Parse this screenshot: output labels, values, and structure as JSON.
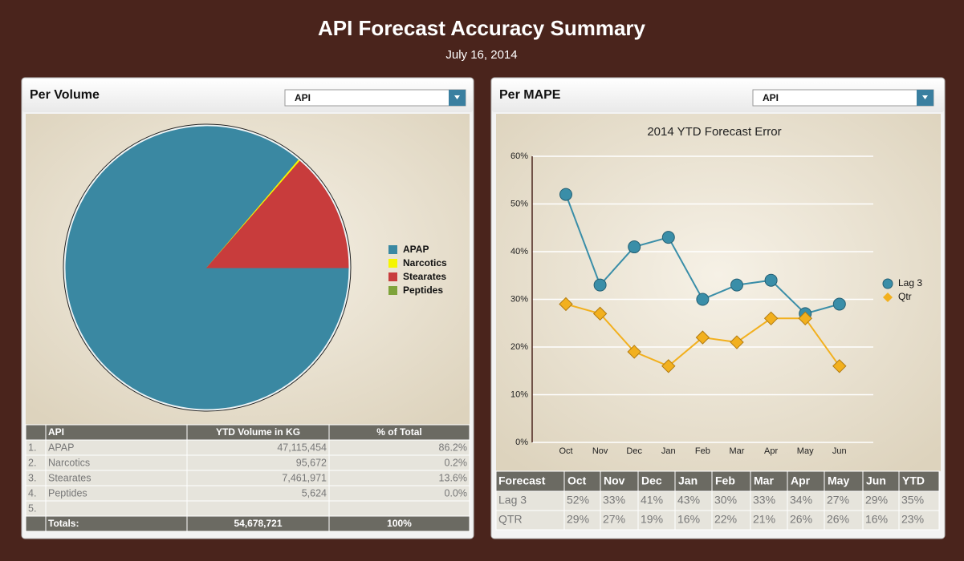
{
  "header": {
    "title": "API Forecast Accuracy Summary",
    "date": "July 16, 2014"
  },
  "panels": [
    {
      "title": "Per Volume",
      "dropdown": "API"
    },
    {
      "title": "Per MAPE",
      "dropdown": "API"
    }
  ],
  "chart_data": [
    {
      "type": "pie",
      "categories": [
        "APAP",
        "Narcotics",
        "Stearates",
        "Peptides"
      ],
      "values": [
        86.2,
        0.2,
        13.6,
        0.0
      ],
      "colors": [
        "#3a88a2",
        "#f5f500",
        "#c83c3c",
        "#7ea33a"
      ],
      "legend": "right"
    },
    {
      "type": "line",
      "title": "2014 YTD Forecast Error",
      "categories": [
        "Oct",
        "Nov",
        "Dec",
        "Jan",
        "Feb",
        "Mar",
        "Apr",
        "May",
        "Jun"
      ],
      "series": [
        {
          "name": "Lag 3",
          "color": "#3a8ea8",
          "marker": "circle",
          "values": [
            52,
            33,
            41,
            43,
            30,
            33,
            34,
            27,
            29
          ]
        },
        {
          "name": "Qtr",
          "color": "#f2b01e",
          "marker": "diamond",
          "values": [
            29,
            27,
            19,
            16,
            22,
            21,
            26,
            26,
            16
          ]
        }
      ],
      "ylim": [
        0,
        60
      ],
      "yticks": [
        {
          "value": 0,
          "label": "0%"
        },
        {
          "value": 10,
          "label": "10%"
        },
        {
          "value": 20,
          "label": "20%"
        },
        {
          "value": 30,
          "label": "30%"
        },
        {
          "value": 40,
          "label": "40%"
        },
        {
          "value": 50,
          "label": "50%"
        },
        {
          "value": 60,
          "label": "60%"
        }
      ],
      "grid": true,
      "legend": "right"
    }
  ],
  "volume_table": {
    "header": [
      "API",
      "YTD Volume in KG",
      "% of Total"
    ],
    "rows": [
      [
        "1.",
        "APAP",
        "47,115,454",
        "86.2%"
      ],
      [
        "2.",
        "Narcotics",
        "95,672",
        "0.2%"
      ],
      [
        "3.",
        "Stearates",
        "7,461,971",
        "13.6%"
      ],
      [
        "4.",
        "Peptides",
        "5,624",
        "0.0%"
      ],
      [
        "5."
      ]
    ],
    "totals": [
      "Totals:",
      "54,678,721",
      "100%"
    ]
  },
  "mape_table": {
    "header": [
      "Forecast",
      "Oct",
      "Nov",
      "Dec",
      "Jan",
      "Feb",
      "Mar",
      "Apr",
      "May",
      "Jun",
      "YTD"
    ],
    "rows": [
      [
        "Lag 3",
        "52%",
        "33%",
        "41%",
        "43%",
        "30%",
        "33%",
        "34%",
        "27%",
        "29%",
        "35%"
      ],
      [
        "QTR",
        "29%",
        "27%",
        "19%",
        "16%",
        "22%",
        "21%",
        "26%",
        "26%",
        "16%",
        "23%"
      ]
    ]
  }
}
